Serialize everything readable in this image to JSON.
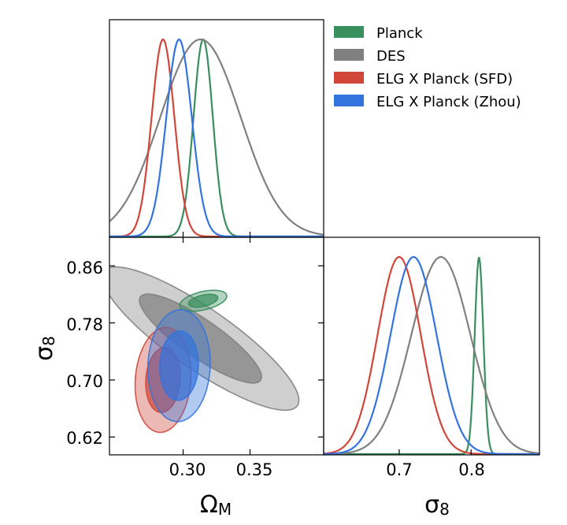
{
  "chart_data": {
    "type": "triangle-corner",
    "parameters": {
      "omega_m": {
        "label": "Ω",
        "subscript": "M",
        "range": [
          0.245,
          0.405
        ],
        "ticks": [
          0.3,
          0.35
        ],
        "tick_labels": [
          "0.30",
          "0.35"
        ]
      },
      "sigma_8": {
        "label": "σ",
        "subscript": "8",
        "range_2d": [
          0.595,
          0.9
        ],
        "ticks_2d": [
          0.62,
          0.7,
          0.78,
          0.86
        ],
        "tick_labels_2d": [
          "0.62",
          "0.70",
          "0.78",
          "0.86"
        ],
        "range_1d": [
          0.595,
          0.895
        ],
        "ticks_1d": [
          0.7,
          0.8
        ],
        "tick_labels_1d": [
          "0.7",
          "0.8"
        ]
      }
    },
    "legend_position": "top-right",
    "series": [
      {
        "name": "Planck",
        "color": "#3a8f5e",
        "omega_m": {
          "mean": 0.315,
          "sigma": 0.0072
        },
        "sigma_8": {
          "mean": 0.811,
          "sigma": 0.006
        },
        "correlation": 0.45
      },
      {
        "name": "DES",
        "color": "#808080",
        "omega_m": {
          "mean": 0.313,
          "sigma": 0.03
        },
        "sigma_8": {
          "mean": 0.758,
          "sigma": 0.041
        },
        "correlation": -0.86
      },
      {
        "name": "ELG X Planck (SFD)",
        "color": "#d0473a",
        "omega_m": {
          "mean": 0.285,
          "sigma": 0.0085
        },
        "sigma_8": {
          "mean": 0.7,
          "sigma": 0.03
        },
        "correlation": 0.1
      },
      {
        "name": "ELG X Planck (Zhou)",
        "color": "#3373dd",
        "omega_m": {
          "mean": 0.297,
          "sigma": 0.0095
        },
        "sigma_8": {
          "mean": 0.72,
          "sigma": 0.032
        },
        "correlation": 0.05
      }
    ]
  }
}
